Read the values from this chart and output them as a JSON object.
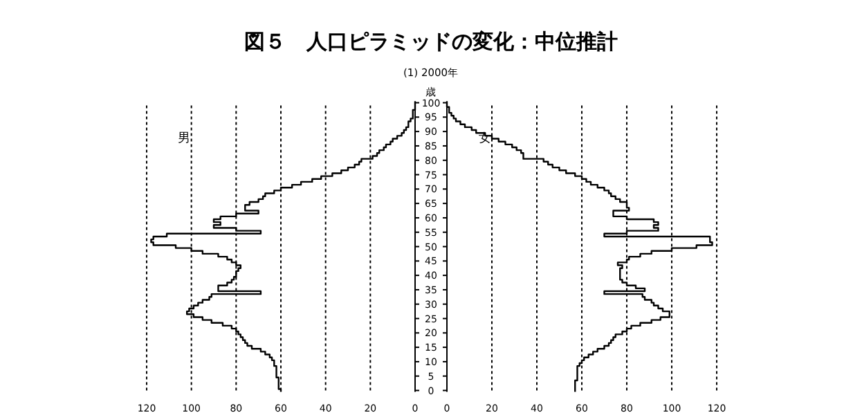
{
  "chart_data": [
    {
      "type": "step",
      "orientation": "horizontal",
      "title": "図５　人口ピラミッドの変化：中位推計",
      "subtitle": "(1) 2000年",
      "ylabel": "歳",
      "grid": "x",
      "categories": [
        "100",
        null,
        null,
        null,
        null,
        "95",
        null,
        null,
        null,
        null,
        "90",
        null,
        null,
        null,
        null,
        "85",
        null,
        null,
        null,
        null,
        "80",
        null,
        null,
        null,
        null,
        "75",
        null,
        null,
        null,
        null,
        "70",
        null,
        null,
        null,
        null,
        "65",
        null,
        null,
        null,
        null,
        "60",
        null,
        null,
        null,
        null,
        "55",
        null,
        null,
        null,
        null,
        "50",
        null,
        null,
        null,
        null,
        "45",
        null,
        null,
        null,
        null,
        "40",
        null,
        null,
        null,
        null,
        "35",
        null,
        null,
        null,
        null,
        "30",
        null,
        null,
        null,
        null,
        "25",
        null,
        null,
        null,
        null,
        "20",
        null,
        null,
        null,
        null,
        "15",
        null,
        null,
        null,
        null,
        "10",
        null,
        null,
        null,
        null,
        "5",
        null,
        null,
        null,
        null,
        "0"
      ],
      "series": [
        {
          "name": "男",
          "color": "#000000",
          "values": [
            0,
            0,
            0,
            1,
            1,
            1,
            2,
            3,
            3,
            4,
            5,
            6,
            8,
            10,
            11,
            13,
            14,
            16,
            17,
            19,
            24,
            25,
            27,
            30,
            33,
            37,
            42,
            46,
            51,
            55,
            60,
            63,
            67,
            68,
            70,
            74,
            76,
            76,
            70,
            80,
            87,
            90,
            87,
            90,
            80,
            69,
            111,
            117,
            118,
            117,
            107,
            100,
            95,
            88,
            84,
            82,
            80,
            78,
            79,
            80,
            80,
            81,
            82,
            84,
            88,
            88,
            69,
            91,
            92,
            95,
            97,
            99,
            101,
            102,
            99,
            95,
            91,
            86,
            82,
            80,
            79,
            78,
            77,
            76,
            75,
            73,
            69,
            67,
            65,
            64,
            63,
            63,
            62,
            62,
            62,
            62,
            61,
            61,
            61,
            61,
            60
          ]
        }
      ],
      "xlim": [
        120,
        0
      ],
      "xticks": [
        120,
        100,
        80,
        60,
        40,
        20,
        0
      ]
    },
    {
      "type": "step",
      "orientation": "horizontal",
      "grid": "x",
      "tick_labels": "x",
      "categories": [
        "100",
        null,
        null,
        null,
        null,
        "95",
        null,
        null,
        null,
        null,
        "90",
        null,
        null,
        null,
        null,
        "85",
        null,
        null,
        null,
        null,
        "80",
        null,
        null,
        null,
        null,
        "75",
        null,
        null,
        null,
        null,
        "70",
        null,
        null,
        null,
        null,
        "65",
        null,
        null,
        null,
        null,
        "60",
        null,
        null,
        null,
        null,
        "55",
        null,
        null,
        null,
        null,
        "50",
        null,
        null,
        null,
        null,
        "45",
        null,
        null,
        null,
        null,
        "40",
        null,
        null,
        null,
        null,
        "35",
        null,
        null,
        null,
        null,
        "30",
        null,
        null,
        null,
        null,
        "25",
        null,
        null,
        null,
        null,
        "20",
        null,
        null,
        null,
        null,
        "15",
        null,
        null,
        null,
        null,
        "10",
        null,
        null,
        null,
        null,
        "5",
        null,
        null,
        null,
        null,
        "0"
      ],
      "series": [
        {
          "name": "女",
          "color": "#000000",
          "values": [
            0,
            0,
            1,
            1,
            2,
            3,
            4,
            6,
            8,
            11,
            13,
            17,
            20,
            23,
            26,
            29,
            31,
            33,
            34,
            34,
            43,
            45,
            47,
            50,
            53,
            57,
            60,
            62,
            64,
            67,
            70,
            72,
            73,
            75,
            77,
            80,
            80,
            81,
            74,
            74,
            80,
            92,
            94,
            92,
            94,
            80,
            70,
            117,
            117,
            118,
            111,
            100,
            91,
            86,
            81,
            80,
            76,
            78,
            77,
            77,
            77,
            77,
            78,
            80,
            84,
            88,
            70,
            87,
            88,
            91,
            92,
            94,
            96,
            99,
            99,
            95,
            91,
            86,
            82,
            80,
            78,
            75,
            74,
            73,
            72,
            70,
            67,
            65,
            63,
            61,
            60,
            59,
            58,
            58,
            58,
            58,
            58,
            57,
            57,
            57,
            57
          ]
        }
      ],
      "xlim": [
        0,
        120
      ],
      "xticks": [
        0,
        20,
        40,
        60,
        80,
        100,
        120
      ]
    }
  ]
}
